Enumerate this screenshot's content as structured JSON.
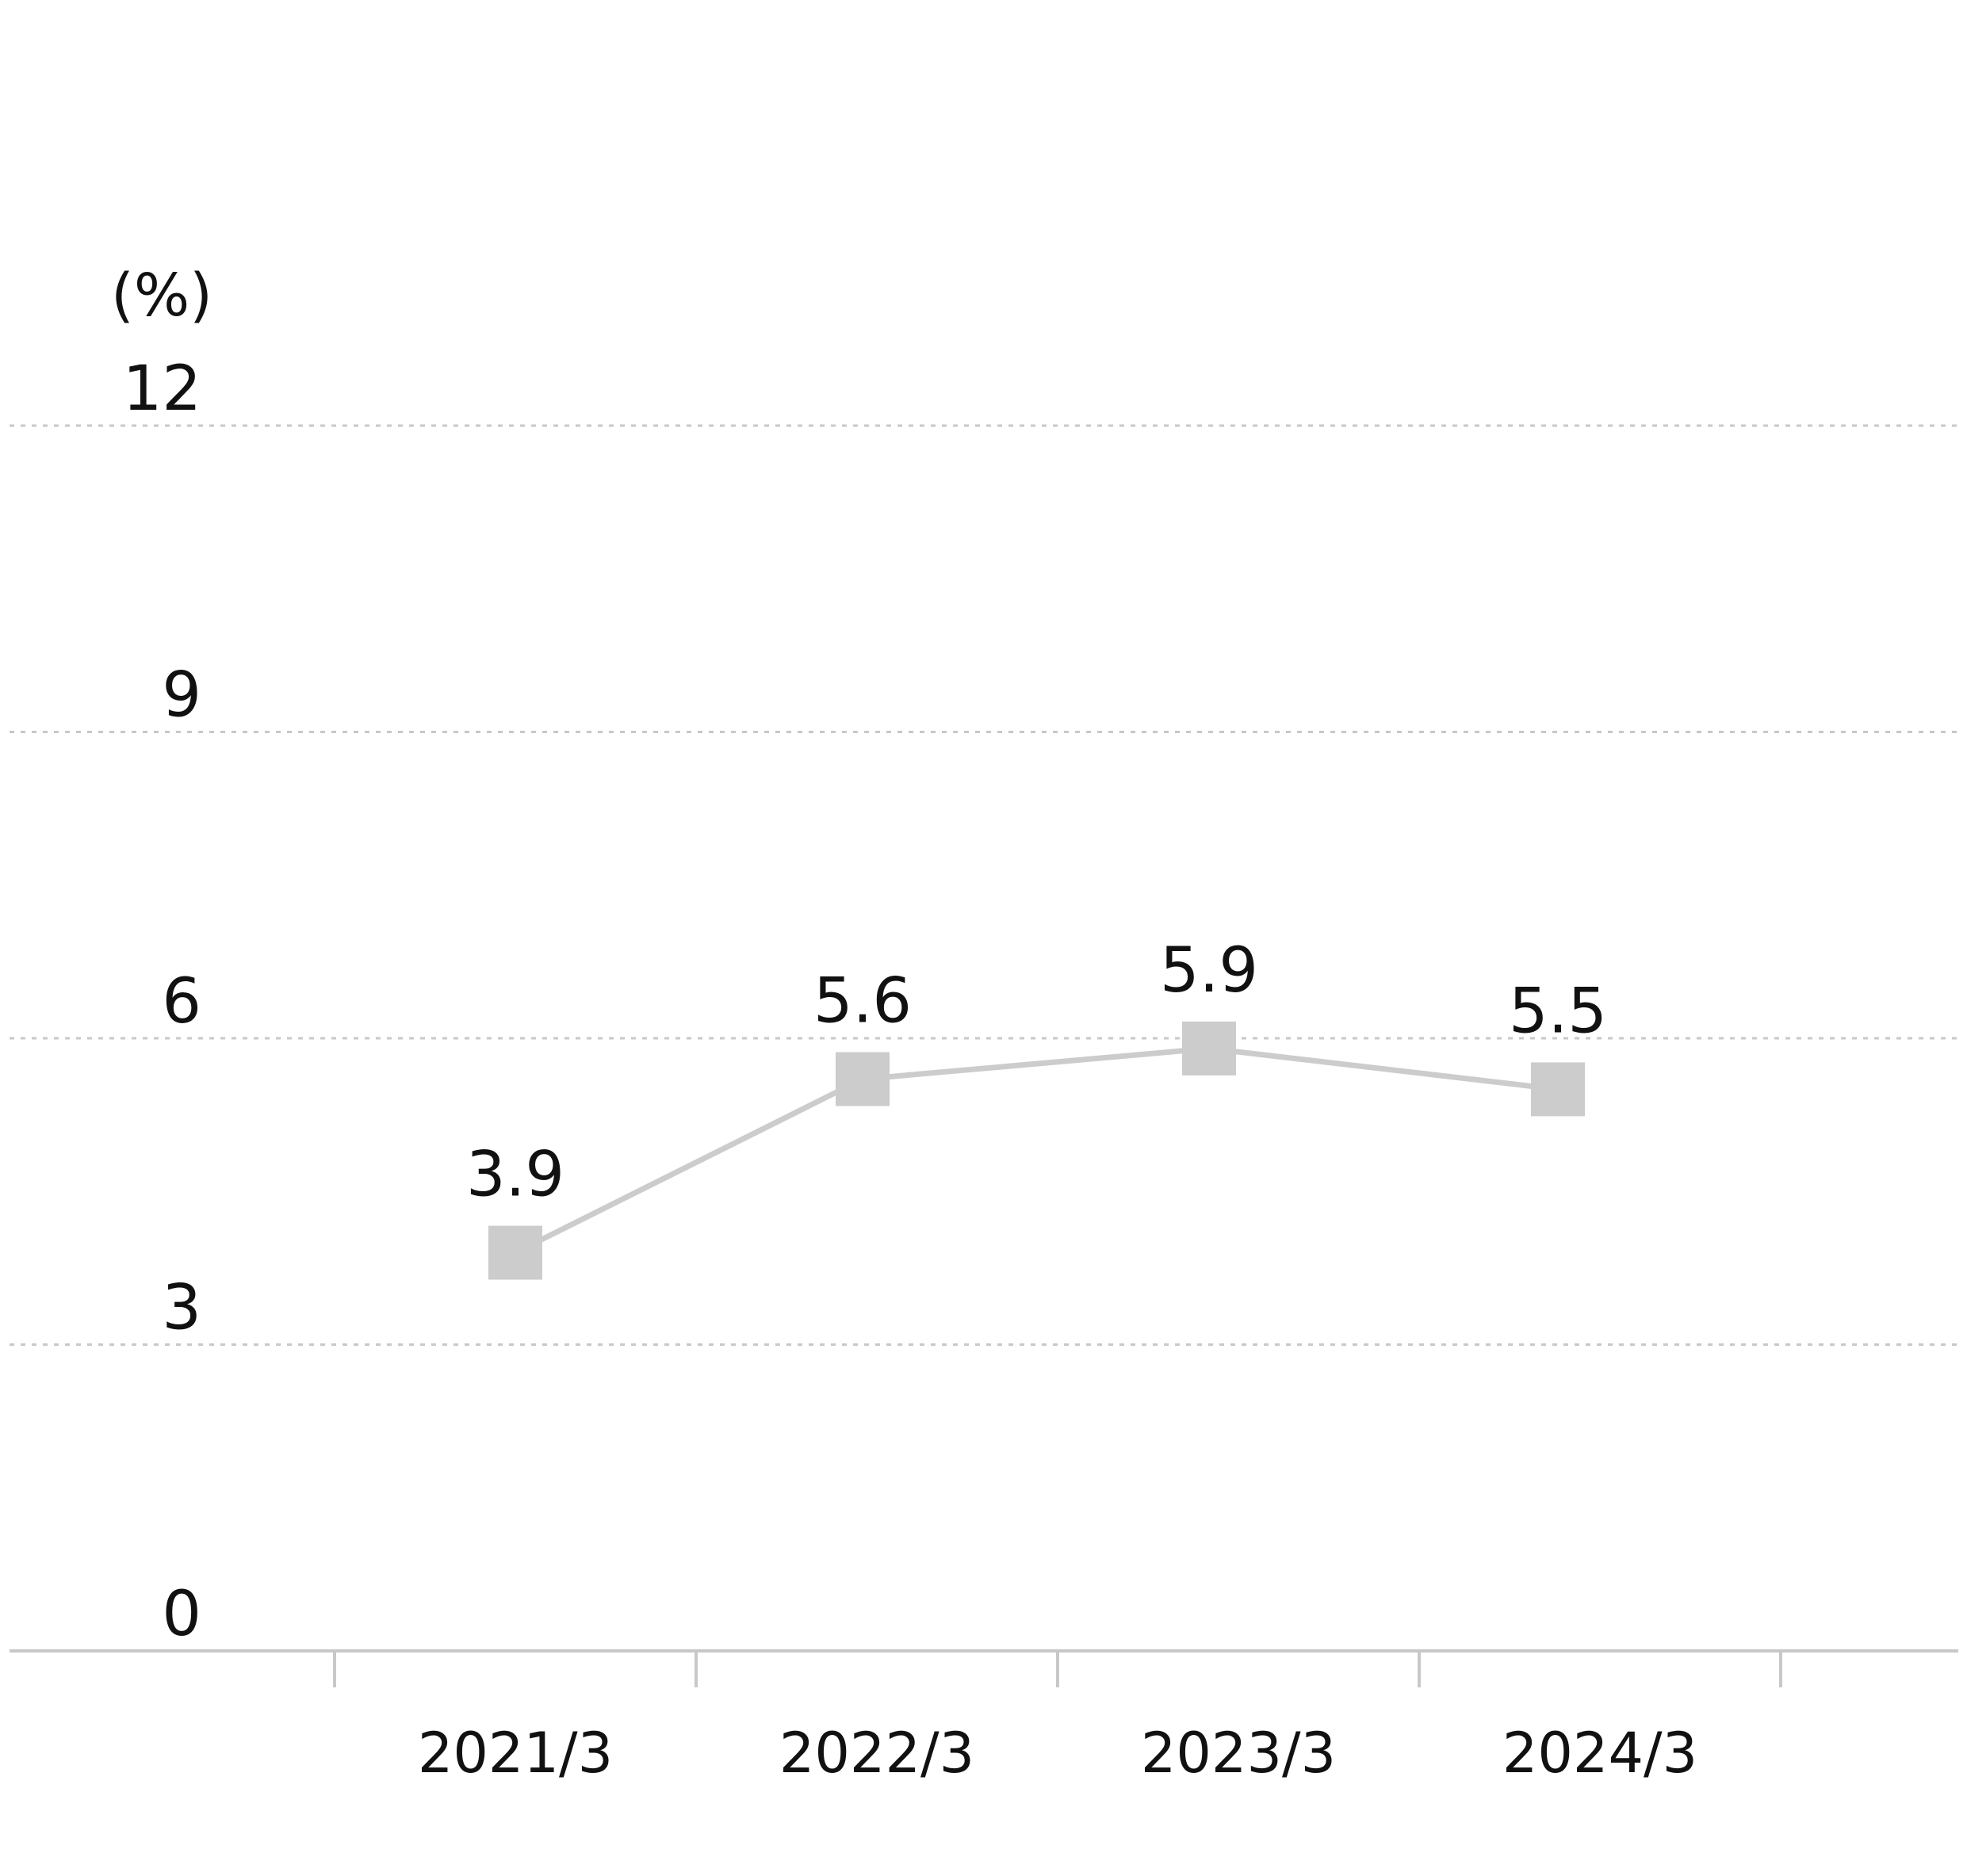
{
  "chart_data": {
    "type": "line",
    "title": "",
    "xlabel": "",
    "ylabel": "",
    "y_unit": "(%)",
    "categories": [
      "2021/3",
      "2022/3",
      "2023/3",
      "2024/3"
    ],
    "series": [
      {
        "values": [
          3.9,
          5.6,
          5.9,
          5.5
        ],
        "value_labels": [
          "3.9",
          "5.6",
          "5.9",
          "5.5"
        ],
        "color": "#cccccc",
        "marker": "square"
      }
    ],
    "ylim": [
      0,
      12
    ],
    "y_ticks": [
      0,
      3,
      6,
      9,
      12
    ],
    "y_tick_labels": [
      "0",
      "3",
      "6",
      "9",
      "12"
    ],
    "grid": true,
    "legend": "none"
  }
}
